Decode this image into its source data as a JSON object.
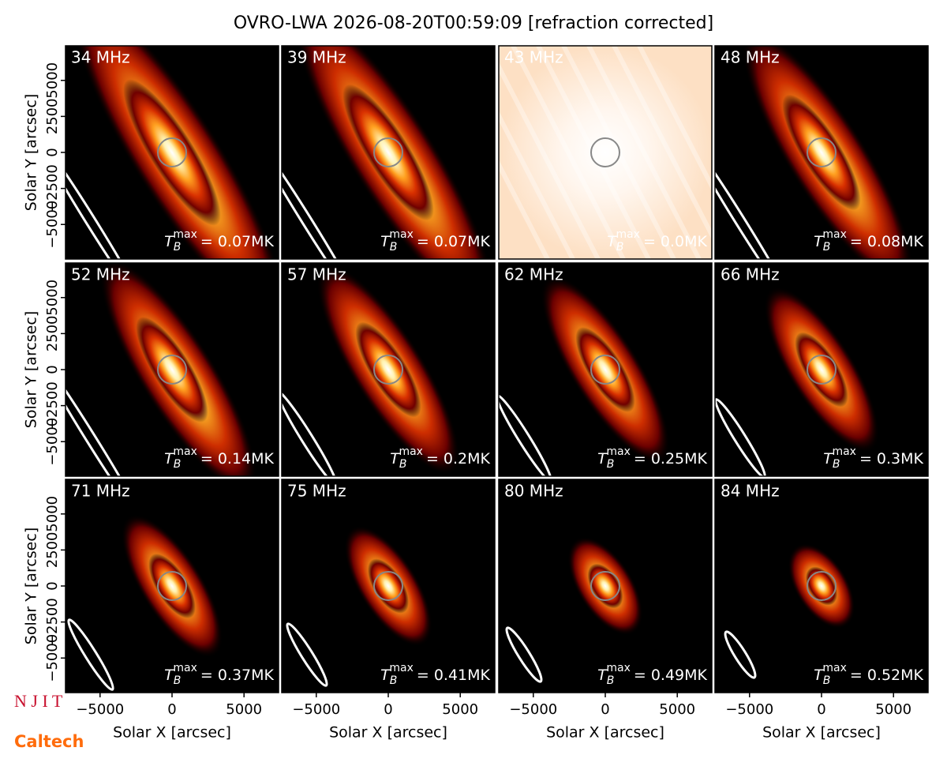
{
  "chart_data": {
    "type": "image-grid",
    "title": "OVRO-LWA 2026-08-20T00:59:09 [refraction corrected]",
    "xlabel": "Solar X [arcsec]",
    "ylabel": "Solar Y [arcsec]",
    "xlim": [
      -7400,
      7400
    ],
    "ylim": [
      -7400,
      7400
    ],
    "xticks": [
      {
        "value": -5000,
        "label": "−5000"
      },
      0,
      5000
    ],
    "yticks": [
      {
        "value": -5000,
        "label": "−5000"
      },
      {
        "value": -2500,
        "label": "−2500"
      },
      0,
      2500,
      5000
    ],
    "annotation_symbol": "T",
    "annotation_sub": "B",
    "annotation_sup": "max",
    "panels": [
      {
        "label": "34 MHz",
        "annotation": "= 0.07MK"
      },
      {
        "label": "39 MHz",
        "annotation": "= 0.07MK"
      },
      {
        "label": "43 MHz",
        "annotation": "= 0.0MK"
      },
      {
        "label": "48 MHz",
        "annotation": "= 0.08MK"
      },
      {
        "label": "52 MHz",
        "annotation": "= 0.14MK"
      },
      {
        "label": "57 MHz",
        "annotation": "= 0.2MK"
      },
      {
        "label": "62 MHz",
        "annotation": "= 0.25MK"
      },
      {
        "label": "66 MHz",
        "annotation": "= 0.3MK"
      },
      {
        "label": "71 MHz",
        "annotation": "= 0.37MK"
      },
      {
        "label": "75 MHz",
        "annotation": "= 0.41MK"
      },
      {
        "label": "80 MHz",
        "annotation": "= 0.49MK"
      },
      {
        "label": "84 MHz",
        "annotation": "= 0.52MK"
      }
    ],
    "logos": [
      "N J I T",
      "Caltech"
    ]
  }
}
